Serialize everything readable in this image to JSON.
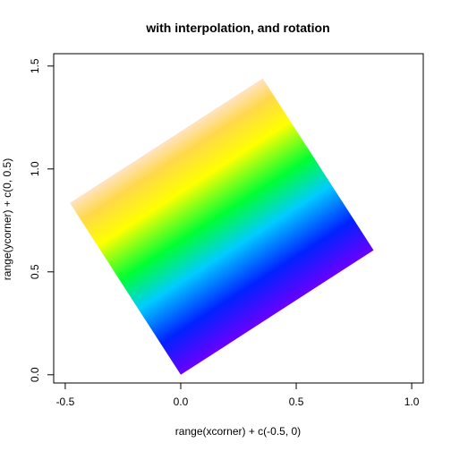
{
  "chart_data": {
    "type": "heatmap",
    "title": "with interpolation, and rotation",
    "xlabel": "range(xcorner) + c(-0.5, 0)",
    "ylabel": "range(ycorner) + c(0, 0.5)",
    "xlim": [
      -0.55,
      1.05
    ],
    "ylim": [
      -0.04,
      1.56
    ],
    "x_ticks": [
      -0.5,
      0.0,
      0.5,
      1.0
    ],
    "x_tick_labels": [
      "-0.5",
      "0.0",
      "0.5",
      "1.0"
    ],
    "y_ticks": [
      0.0,
      0.5,
      1.0,
      1.5
    ],
    "y_tick_labels": [
      "0.0",
      "0.5",
      "1.0",
      "1.5"
    ],
    "grid": false,
    "raster_corners": [
      {
        "x": 0.0,
        "y": 0.0
      },
      {
        "x": 0.835,
        "y": 0.605
      },
      {
        "x": 0.355,
        "y": 1.44
      },
      {
        "x": -0.48,
        "y": 0.835
      }
    ],
    "color_gradient": [
      {
        "offset": 0.0,
        "color": "#6a00ff"
      },
      {
        "offset": 0.18,
        "color": "#0022ff"
      },
      {
        "offset": 0.38,
        "color": "#00ccff"
      },
      {
        "offset": 0.55,
        "color": "#00ff33"
      },
      {
        "offset": 0.75,
        "color": "#ffff00"
      },
      {
        "offset": 0.9,
        "color": "#ffd84a"
      },
      {
        "offset": 1.0,
        "color": "#ffe3c4"
      }
    ]
  }
}
